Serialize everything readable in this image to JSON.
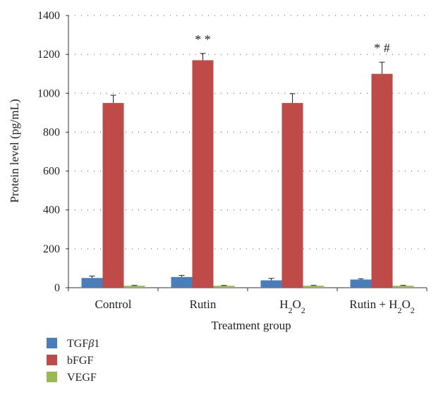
{
  "chart_data": {
    "type": "bar",
    "xlabel": "Treatment group",
    "ylabel": "Protein level (pg/mL)",
    "ylim": [
      0,
      1400
    ],
    "yticks": [
      0,
      200,
      400,
      600,
      800,
      1000,
      1200,
      1400
    ],
    "grid": "dotted horizontal",
    "legend_position": "bottom-left",
    "categories": [
      {
        "base": "Control",
        "sub": "",
        "tail": ""
      },
      {
        "base": "Rutin",
        "sub": "",
        "tail": ""
      },
      {
        "base": "H",
        "sub": "2",
        "mid": "O",
        "sub2": "2",
        "tail": ""
      },
      {
        "base": "Rutin + H",
        "sub": "2",
        "mid": "O",
        "sub2": "2",
        "tail": ""
      }
    ],
    "series": [
      {
        "name": "TGF",
        "name_greek": "β",
        "name_tail": "1",
        "color": "#4a7ebb",
        "values": [
          50,
          55,
          38,
          42
        ],
        "errors": [
          10,
          8,
          10,
          4
        ]
      },
      {
        "name": "bFGF",
        "color": "#be4b48",
        "values": [
          950,
          1170,
          950,
          1100
        ],
        "errors": [
          40,
          35,
          48,
          60
        ]
      },
      {
        "name": "VEGF",
        "color": "#98b954",
        "values": [
          10,
          10,
          10,
          10
        ],
        "errors": [
          2,
          2,
          2,
          2
        ]
      }
    ],
    "annotations": [
      {
        "category": 1,
        "series": 1,
        "text": "* *"
      },
      {
        "category": 3,
        "series": 1,
        "text": "* #"
      }
    ]
  }
}
